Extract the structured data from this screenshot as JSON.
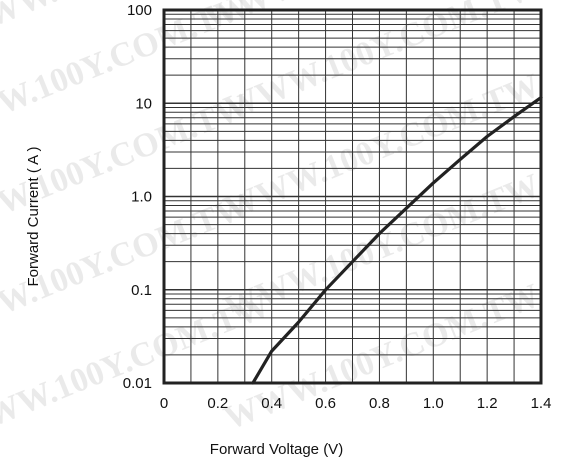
{
  "chart_data": {
    "type": "line",
    "title": "",
    "xlabel": "Forward Voltage (V)",
    "ylabel": "Forward Current ( A )",
    "x_scale": "linear",
    "y_scale": "log",
    "xlim": [
      0,
      1.4
    ],
    "ylim": [
      0.01,
      100
    ],
    "x_ticks": [
      "0",
      "0.2",
      "0.4",
      "0.6",
      "0.8",
      "1.0",
      "1.2",
      "1.4"
    ],
    "y_ticks": [
      "0.01",
      "0.1",
      "1.0",
      "10",
      "100"
    ],
    "grid": true,
    "series": [
      {
        "color": "#222222",
        "points": [
          [
            0.33,
            0.01
          ],
          [
            0.4,
            0.022
          ],
          [
            0.5,
            0.045
          ],
          [
            0.6,
            0.1
          ],
          [
            0.7,
            0.2
          ],
          [
            0.8,
            0.4
          ],
          [
            0.9,
            0.75
          ],
          [
            1.0,
            1.4
          ],
          [
            1.1,
            2.5
          ],
          [
            1.2,
            4.4
          ],
          [
            1.3,
            7.2
          ],
          [
            1.4,
            11.5
          ]
        ]
      }
    ]
  },
  "watermark": {
    "text": "WWW.100Y.COM.TW"
  }
}
